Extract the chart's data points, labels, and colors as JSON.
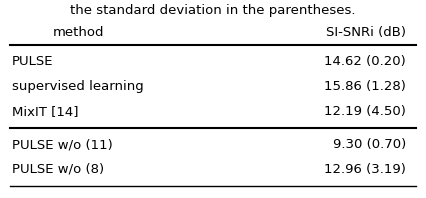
{
  "caption": "the standard deviation in the parentheses.",
  "col1_header": "method",
  "col2_header": "SI-SNRi (dB)",
  "rows_group1": [
    [
      "PULSE",
      "14.62 (0.20)"
    ],
    [
      "supervised learning",
      "15.86 (1.28)"
    ],
    [
      "MixIT [14]",
      "12.19 (4.50)"
    ]
  ],
  "rows_group2": [
    [
      "PULSE w/o (11)",
      "9.30 (0.70)"
    ],
    [
      "PULSE w/o (8)",
      "12.96 (3.19)"
    ]
  ],
  "background_color": "#ffffff",
  "text_color": "#000000",
  "font_size": 9.5
}
